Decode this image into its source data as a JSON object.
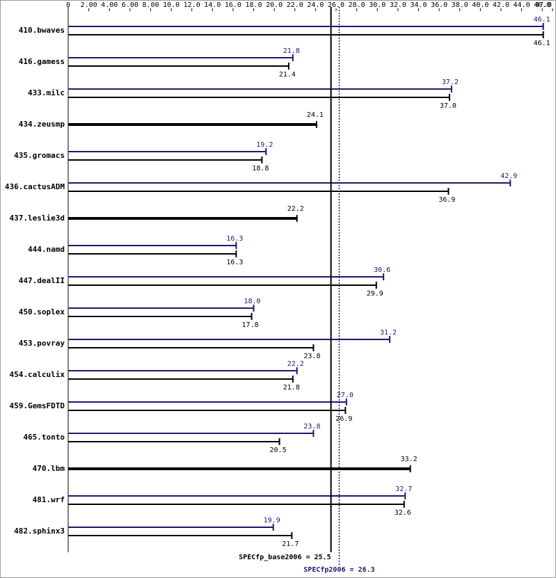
{
  "chart_data": {
    "type": "bar",
    "orientation": "horizontal",
    "categories": [
      "410.bwaves",
      "416.gamess",
      "433.milc",
      "434.zeusmp",
      "435.gromacs",
      "436.cactusADM",
      "437.leslie3d",
      "444.namd",
      "447.dealII",
      "450.soplex",
      "453.povray",
      "454.calculix",
      "459.GemsFDTD",
      "465.tonto",
      "470.lbm",
      "481.wrf",
      "482.sphinx3"
    ],
    "series": [
      {
        "color": "#191970",
        "values": [
          46.1,
          21.8,
          37.2,
          null,
          19.2,
          42.9,
          null,
          16.3,
          30.6,
          18.0,
          31.2,
          22.2,
          27.0,
          23.8,
          null,
          32.7,
          19.9
        ],
        "value_labels": [
          "46.1",
          "21.8",
          "37.2",
          null,
          "19.2",
          "42.9",
          null,
          "16.3",
          "30.6",
          "18.0",
          "31.2",
          "22.2",
          "27.0",
          "23.8",
          null,
          "32.7",
          "19.9"
        ]
      },
      {
        "color": "#000000",
        "values": [
          46.1,
          21.4,
          37.0,
          24.1,
          18.8,
          36.9,
          22.2,
          16.3,
          29.9,
          17.8,
          23.8,
          21.8,
          26.9,
          20.5,
          33.2,
          32.6,
          21.7
        ],
        "value_labels": [
          "46.1",
          "21.4",
          "37.0",
          "24.1",
          "18.8",
          "36.9",
          "22.2",
          "16.3",
          "29.9",
          "17.8",
          "23.8",
          "21.8",
          "26.9",
          "20.5",
          "33.2",
          "32.6",
          "21.7"
        ]
      }
    ],
    "xlim": [
      0,
      47
    ],
    "xticks": [
      0,
      {
        "value": 2,
        "label": "2.00"
      },
      {
        "value": 4,
        "label": "4.00"
      },
      {
        "value": 6,
        "label": "6.00"
      },
      {
        "value": 8,
        "label": "8.00"
      },
      {
        "value": 10,
        "label": "10.0"
      },
      {
        "value": 12,
        "label": "12.0"
      },
      {
        "value": 14,
        "label": "14.0"
      },
      {
        "value": 16,
        "label": "16.0"
      },
      {
        "value": 18,
        "label": "18.0"
      },
      {
        "value": 20,
        "label": "20.0"
      },
      {
        "value": 22,
        "label": "22.0"
      },
      {
        "value": 24,
        "label": "24.0"
      },
      {
        "value": 26,
        "label": "26.0"
      },
      {
        "value": 28,
        "label": "28.0"
      },
      {
        "value": 30,
        "label": "30.0"
      },
      {
        "value": 32,
        "label": "32.0"
      },
      {
        "value": 34,
        "label": "34.0"
      },
      {
        "value": 36,
        "label": "36.0"
      },
      {
        "value": 38,
        "label": "38.0"
      },
      {
        "value": 40,
        "label": "40.0"
      },
      {
        "value": 42,
        "label": "42.0"
      },
      {
        "value": 44,
        "label": "44.0"
      },
      {
        "value": 46,
        "label": "46.0"
      },
      {
        "value": 47,
        "label": "47.0"
      }
    ],
    "reference_lines": [
      {
        "label": "SPECfp_base2006 = 25.5",
        "value": 25.5,
        "color": "#000000",
        "style": "solid"
      },
      {
        "label": "SPECfp2006 = 26.3",
        "value": 26.3,
        "color": "#191970",
        "style": "dotted"
      }
    ]
  }
}
